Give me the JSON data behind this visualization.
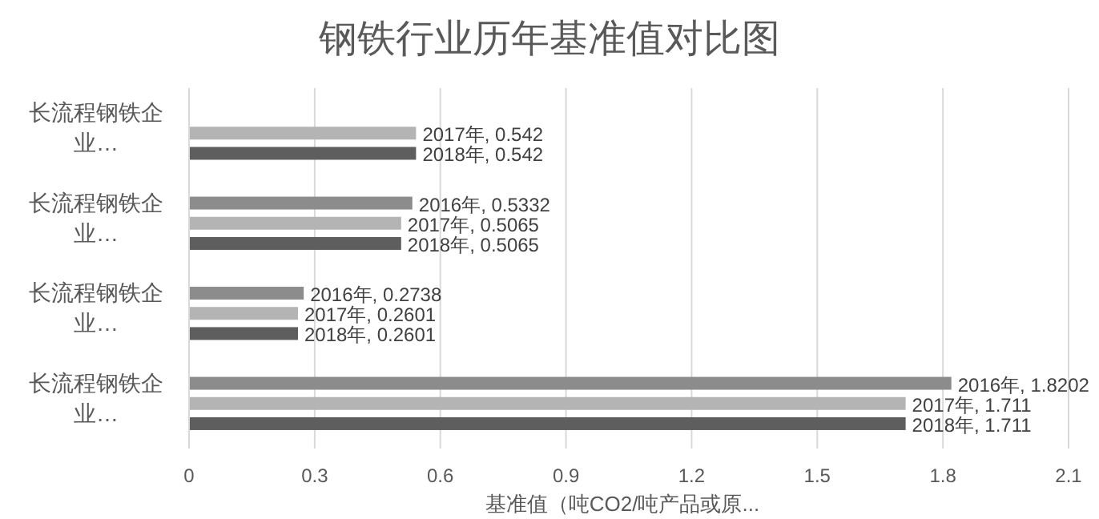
{
  "chart_data": {
    "type": "bar",
    "orientation": "horizontal",
    "title": "钢铁行业历年基准值对比图",
    "xlabel": "基准值（吨CO2/吨产品或原...",
    "categories": [
      "长流程钢铁企业…",
      "长流程钢铁企业…",
      "长流程钢铁企业…",
      "长流程钢铁企业…"
    ],
    "series": [
      {
        "color": "#8c8c8c",
        "values": [
          null,
          0.5332,
          0.2738,
          1.8202
        ],
        "value_labels": [
          null,
          "2016年, 0.5332",
          "2016年, 0.2738",
          "2016年, 1.8202"
        ]
      },
      {
        "color": "#b4b4b4",
        "values": [
          0.542,
          0.5065,
          0.2601,
          1.711
        ],
        "value_labels": [
          "2017年, 0.542",
          "2017年, 0.5065",
          "2017年, 0.2601",
          "2017年, 1.711"
        ]
      },
      {
        "color": "#5e5e5e",
        "values": [
          0.542,
          0.5065,
          0.2601,
          1.711
        ],
        "value_labels": [
          "2018年, 0.542",
          "2018年, 0.5065",
          "2018年, 0.2601",
          "2018年, 1.711"
        ]
      }
    ],
    "xlim": [
      0,
      2.1
    ],
    "xticks": [
      0,
      0.3,
      0.6,
      0.9,
      1.2,
      1.5,
      1.8,
      2.1
    ],
    "grid": "x"
  }
}
